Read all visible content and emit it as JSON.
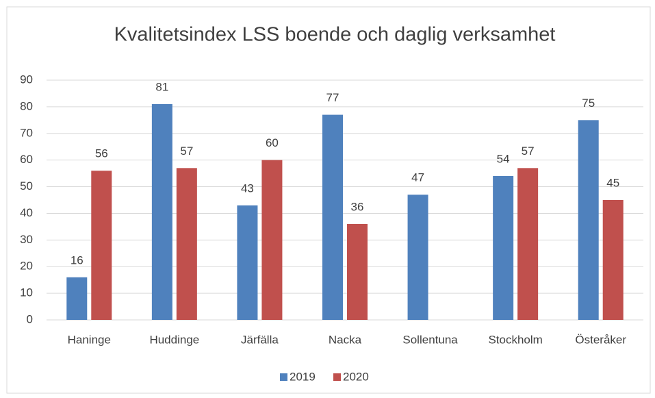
{
  "chart_data": {
    "type": "bar",
    "title": "Kvalitetsindex LSS boende och daglig verksamhet",
    "categories": [
      "Haninge",
      "Huddinge",
      "Järfälla",
      "Nacka",
      "Sollentuna",
      "Stockholm",
      "Österåker"
    ],
    "series": [
      {
        "name": "2019",
        "color": "#4f81bd",
        "values": [
          16,
          81,
          43,
          77,
          47,
          54,
          75
        ]
      },
      {
        "name": "2020",
        "color": "#c0504d",
        "values": [
          56,
          57,
          60,
          36,
          null,
          57,
          45
        ]
      }
    ],
    "ylim": [
      0,
      90
    ],
    "yticks": [
      0,
      10,
      20,
      30,
      40,
      50,
      60,
      70,
      80,
      90
    ],
    "grid": true,
    "legend": "bottom"
  }
}
